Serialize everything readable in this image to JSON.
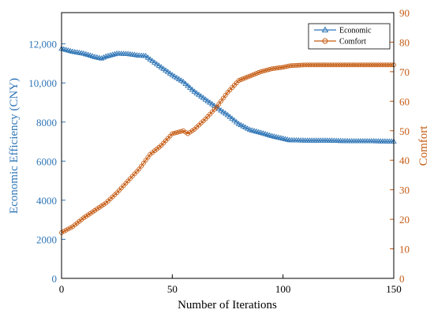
{
  "chart_data": {
    "type": "line",
    "xlabel": "Number of Iterations",
    "ylabel_left": "Economic Efficiency (CNY)",
    "ylabel_right": "Comfort",
    "xlim": [
      0,
      150
    ],
    "ylim_left": [
      0,
      13600
    ],
    "ylim_right": [
      0,
      90
    ],
    "x_ticks": [
      0,
      50,
      100,
      150
    ],
    "left_ticks": [
      0,
      2000,
      4000,
      6000,
      8000,
      10000,
      12000
    ],
    "left_tick_labels": [
      "0",
      "2000",
      "4000",
      "6000",
      "8000",
      "10,000",
      "12,000"
    ],
    "right_ticks": [
      0,
      10,
      20,
      30,
      40,
      50,
      60,
      70,
      80,
      90
    ],
    "grid": false,
    "legend_position": "top-right",
    "colors": {
      "economic": "#2e75b6",
      "comfort": "#c55a11"
    },
    "series": [
      {
        "name": "Economic",
        "axis": "left",
        "marker": "triangle",
        "x": [
          0,
          5,
          10,
          15,
          18,
          20,
          25,
          30,
          35,
          38,
          40,
          45,
          50,
          55,
          60,
          65,
          70,
          75,
          80,
          85,
          90,
          95,
          100,
          103,
          110,
          120,
          130,
          140,
          150
        ],
        "values": [
          11750,
          11600,
          11500,
          11330,
          11250,
          11350,
          11500,
          11480,
          11400,
          11380,
          11200,
          10800,
          10400,
          10050,
          9550,
          9150,
          8750,
          8350,
          7900,
          7600,
          7450,
          7280,
          7150,
          7070,
          7050,
          7050,
          7020,
          7020,
          7000
        ]
      },
      {
        "name": "Comfort",
        "axis": "right",
        "marker": "circle",
        "x": [
          0,
          5,
          10,
          15,
          20,
          25,
          30,
          35,
          40,
          45,
          50,
          55,
          57,
          60,
          65,
          70,
          75,
          80,
          85,
          90,
          95,
          100,
          103,
          110,
          120,
          130,
          140,
          150
        ],
        "values": [
          15.5,
          17.5,
          20.5,
          23,
          25.5,
          29,
          33,
          37,
          42,
          45,
          49,
          50,
          49,
          50.5,
          54,
          58,
          63,
          67,
          68.5,
          70,
          71,
          71.5,
          72,
          72.3,
          72.3,
          72.3,
          72.3,
          72.3
        ]
      }
    ]
  }
}
